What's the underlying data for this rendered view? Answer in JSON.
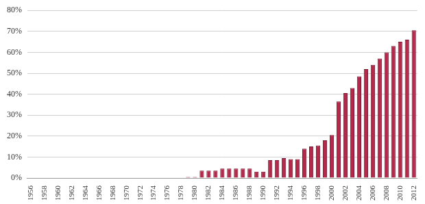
{
  "chart_data": {
    "type": "bar",
    "categories": [
      "1956",
      null,
      "1958",
      null,
      "1960",
      null,
      "1962",
      null,
      "1964",
      null,
      "1966",
      null,
      "1968",
      null,
      "1970",
      null,
      "1972",
      null,
      "1974",
      null,
      "1976",
      null,
      "1978",
      null,
      "1980",
      null,
      "1982",
      null,
      "1984",
      null,
      "1986",
      null,
      "1988",
      null,
      "1990",
      null,
      "1992",
      null,
      "1994",
      null,
      "1996",
      null,
      "1998",
      null,
      "2000",
      null,
      "2002",
      null,
      "2004",
      null,
      "2006",
      null,
      "2008",
      null,
      "2010",
      null,
      "2012"
    ],
    "values": [
      0,
      0,
      0,
      0,
      0,
      0,
      0,
      0,
      0,
      0,
      0,
      0,
      0,
      0,
      0,
      0,
      0,
      0,
      0,
      0,
      0,
      0,
      0,
      0.5,
      0.5,
      3.5,
      3.5,
      3.5,
      4.5,
      4.5,
      4.5,
      4.5,
      4.5,
      3,
      3,
      8.5,
      8.5,
      9.5,
      9,
      9,
      14,
      15,
      15.5,
      18,
      20.5,
      36.5,
      40.5,
      43,
      48.5,
      52,
      54,
      57,
      60,
      63,
      65,
      66,
      70.5
    ],
    "color": "#b3294a",
    "ylim": [
      0,
      80
    ],
    "yticks": [
      {
        "value": 0,
        "label": "0%"
      },
      {
        "value": 10,
        "label": "10%"
      },
      {
        "value": 20,
        "label": "20%"
      },
      {
        "value": 30,
        "label": "30%"
      },
      {
        "value": 40,
        "label": "40%"
      },
      {
        "value": 50,
        "label": "50%"
      },
      {
        "value": 60,
        "label": "60%"
      },
      {
        "value": 70,
        "label": "70%"
      },
      {
        "value": 80,
        "label": "80%"
      }
    ],
    "grid": true
  }
}
